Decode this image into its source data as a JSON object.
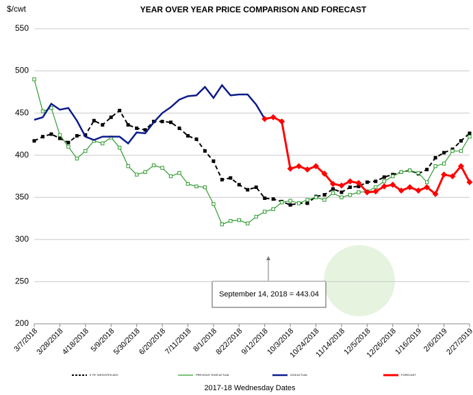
{
  "chart_data": {
    "type": "line",
    "title": "YEAR OVER YEAR PRICE COMPARISON AND FORECAST",
    "y_label": "$/cwt",
    "x_label": "2017-18 Wednesday Dates",
    "annotation": "September 14, 2018  = 443.04",
    "categories": [
      "3/7/2018",
      null,
      null,
      "3/28/2018",
      null,
      null,
      "4/18/2018",
      null,
      null,
      "5/9/2018",
      null,
      null,
      "5/30/2018",
      null,
      null,
      "6/20/2018",
      null,
      null,
      "7/11/2018",
      null,
      null,
      "8/1/2018",
      null,
      null,
      "8/22/2018",
      null,
      null,
      "9/12/2018",
      null,
      null,
      "10/3/2018",
      null,
      null,
      "10/24/2018",
      null,
      null,
      "11/14/2018",
      null,
      null,
      "12/5/2018",
      null,
      null,
      "12/26/2018",
      null,
      null,
      "1/16/2019",
      null,
      null,
      "2/6/2019",
      null,
      null,
      "2/27/2019"
    ],
    "ylim": [
      200,
      550
    ],
    "yticks": [
      200,
      250,
      300,
      350,
      400,
      450,
      500,
      550
    ],
    "grid": true,
    "legend": "bottom",
    "series": [
      {
        "name": "5 YR. WEIGHTED AVG",
        "color": "#000000",
        "style": "dashed",
        "marker": "square",
        "values": [
          417,
          422,
          425,
          420,
          415,
          423,
          424,
          441,
          436,
          445,
          453,
          436,
          432,
          430,
          440,
          440,
          439,
          432,
          423,
          419,
          405,
          393,
          371,
          373,
          365,
          359,
          362,
          349,
          348,
          345,
          341,
          343,
          343,
          351,
          353,
          360,
          356,
          362,
          363,
          368,
          369,
          374,
          377,
          380,
          382,
          378,
          383,
          397,
          403,
          407,
          417,
          426
        ]
      },
      {
        "name": "PREVIOUS YEAR ACTUAL",
        "color": "#2e9a2e",
        "style": "solid",
        "marker": "open-square",
        "values": [
          490,
          452,
          456,
          424,
          410,
          396,
          405,
          417,
          414,
          421,
          409,
          387,
          377,
          380,
          388,
          385,
          375,
          379,
          366,
          363,
          362,
          342,
          318,
          322,
          323,
          319,
          327,
          333,
          336,
          344,
          346,
          343,
          347,
          350,
          347,
          355,
          350,
          353,
          356,
          357,
          362,
          369,
          375,
          380,
          382,
          379,
          368,
          387,
          390,
          405,
          405,
          422
        ]
      },
      {
        "name": "2018 ACTUAL",
        "color": "#0a1a8a",
        "style": "solid",
        "marker": "none",
        "values": [
          442,
          445,
          461,
          454,
          456,
          441,
          422,
          418,
          422,
          422,
          422,
          414,
          427,
          426,
          439,
          450,
          457,
          466,
          470,
          471,
          481,
          468,
          483,
          471,
          472,
          472,
          460,
          443,
          null,
          null,
          null,
          null,
          null,
          null,
          null,
          null,
          null,
          null,
          null,
          null,
          null,
          null,
          null,
          null,
          null,
          null,
          null,
          null,
          null,
          null,
          null,
          null
        ]
      },
      {
        "name": "FORECAST",
        "color": "#ff0000",
        "style": "solid",
        "marker": "diamond",
        "values": [
          null,
          null,
          null,
          null,
          null,
          null,
          null,
          null,
          null,
          null,
          null,
          null,
          null,
          null,
          null,
          null,
          null,
          null,
          null,
          null,
          null,
          null,
          null,
          null,
          null,
          null,
          null,
          443,
          445,
          440,
          384,
          387,
          383,
          387,
          378,
          366,
          364,
          369,
          367,
          356,
          357,
          363,
          365,
          358,
          362,
          358,
          362,
          354,
          377,
          375,
          387,
          368
        ]
      }
    ]
  }
}
